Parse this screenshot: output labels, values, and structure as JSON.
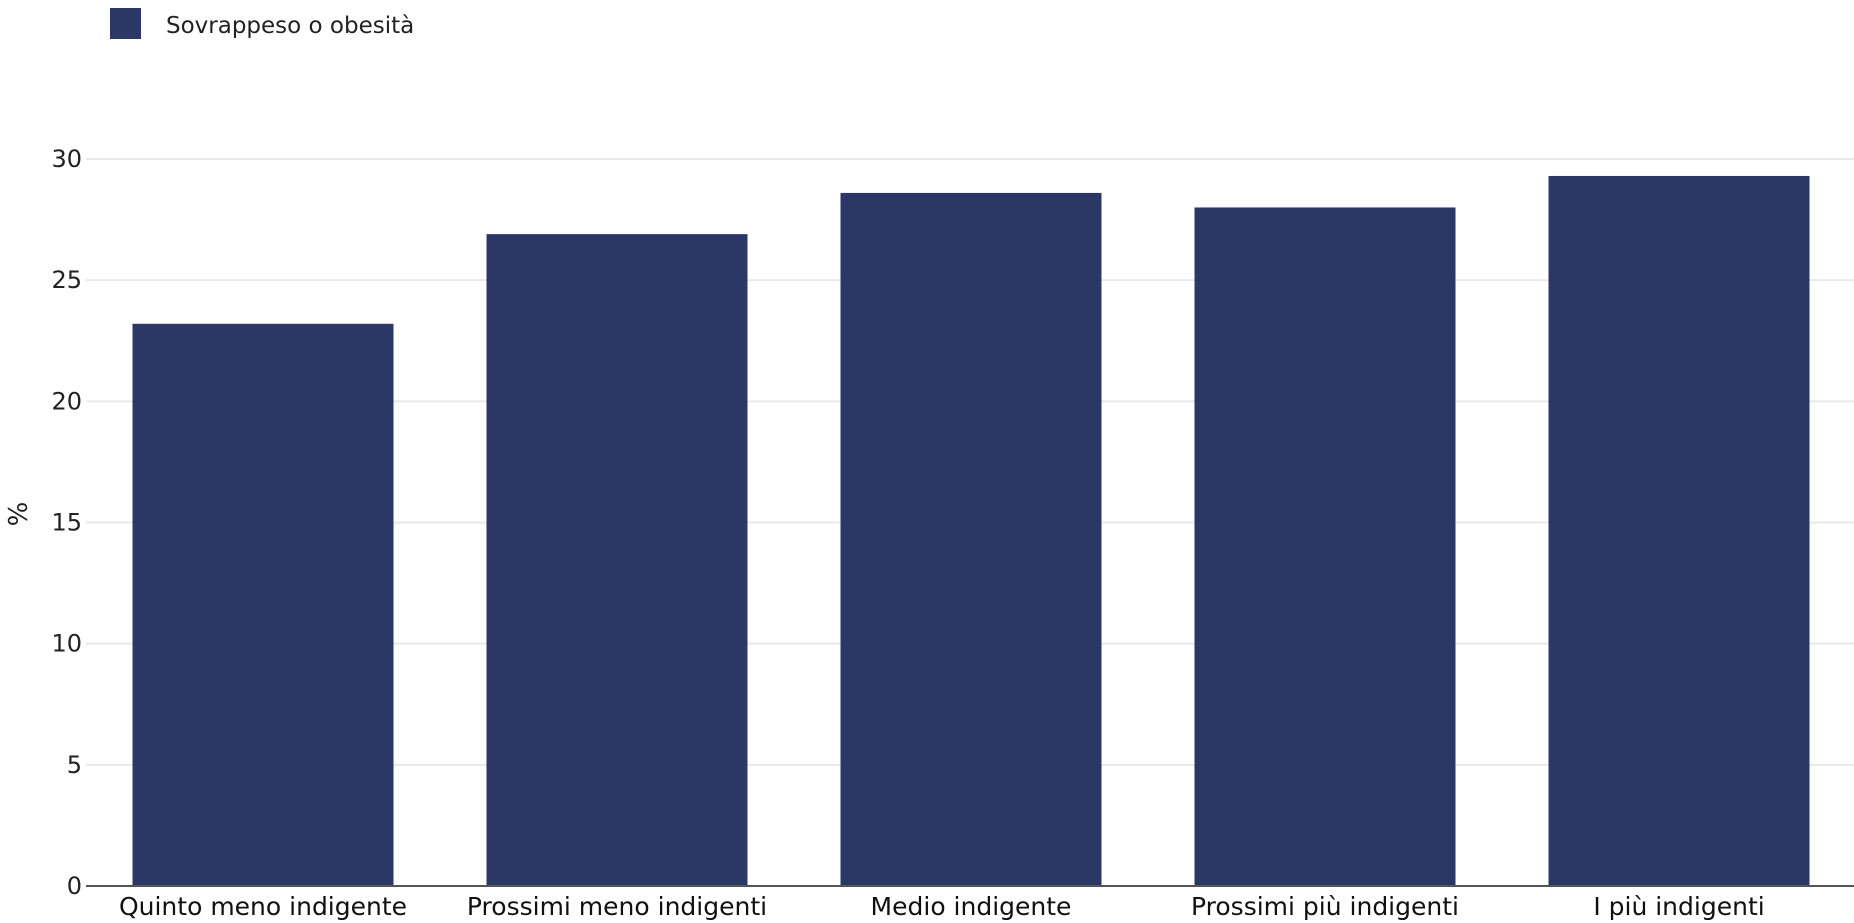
{
  "chart_data": {
    "type": "bar",
    "categories": [
      "Quinto meno indigente",
      "Prossimi meno indigenti",
      "Medio indigente",
      "Prossimi più indigenti",
      "I più indigenti"
    ],
    "series": [
      {
        "name": "Sovrappeso o obesità",
        "values": [
          23.2,
          26.9,
          28.6,
          28.0,
          29.3
        ],
        "color": "#2b3765"
      }
    ],
    "ylabel": "%",
    "ylim": [
      0,
      30
    ],
    "yticks": [
      0,
      5,
      10,
      15,
      20,
      25,
      30
    ],
    "grid": true,
    "legend_position": "top-left"
  }
}
